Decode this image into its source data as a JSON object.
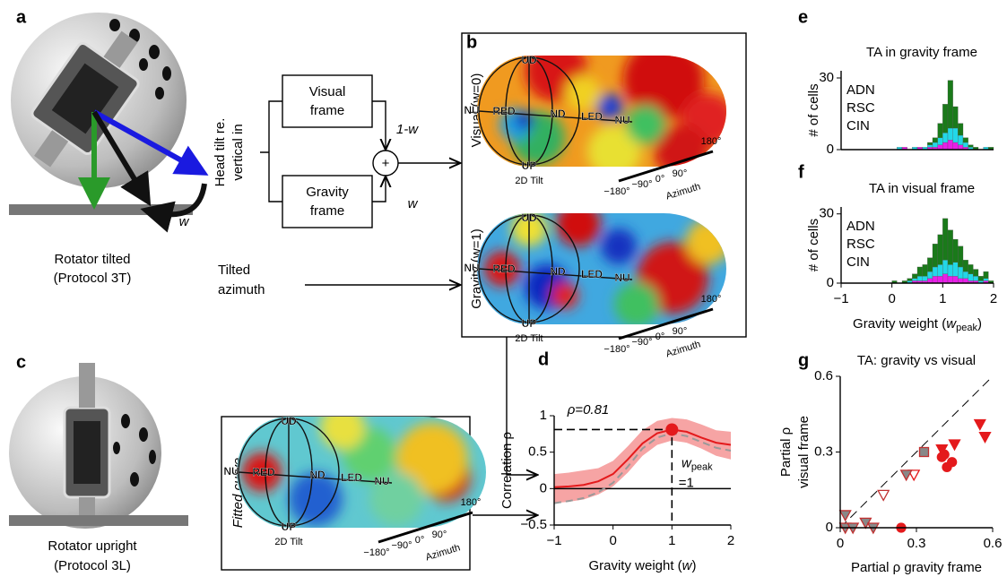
{
  "panel_labels": [
    "a",
    "b",
    "c",
    "d",
    "e",
    "f",
    "g"
  ],
  "diagram": {
    "rotator_tilted": [
      "Rotator tilted",
      "(Protocol 3T)"
    ],
    "rotator_upright": [
      "Rotator upright",
      "(Protocol 3L)"
    ],
    "input_head_tilt": [
      "Head tilt re.",
      "vertical in"
    ],
    "visual_frame": [
      "Visual",
      "frame"
    ],
    "gravity_frame": [
      "Gravity",
      "frame"
    ],
    "visual_weight": "1-w",
    "gravity_weight": "w",
    "sum": "+",
    "rotation_arrow": "w",
    "input_azimuth": [
      "Tilted",
      "azimuth"
    ],
    "map_visual": "Visual (w=0)",
    "map_gravity": "Gravity (w=1)",
    "map_fitted": "Fitted curve",
    "sphere_labels": [
      "UD",
      "NU",
      "RED",
      "ND",
      "LED",
      "NU",
      "UP"
    ],
    "tilt_label": "2D Tilt",
    "azimuth_ticks": [
      "−180°",
      "−90°",
      "0°",
      "90°",
      "180°"
    ],
    "azimuth_label": "Azimuth"
  },
  "chart_data": [
    {
      "type": "histogram",
      "title": "TA in gravity frame",
      "ylabel": "# of cells",
      "bins": [
        -1,
        -0.9,
        -0.8,
        -0.7,
        -0.6,
        -0.5,
        -0.4,
        -0.3,
        -0.2,
        -0.1,
        0,
        0.1,
        0.2,
        0.3,
        0.4,
        0.5,
        0.6,
        0.7,
        0.8,
        0.9,
        1,
        1.1,
        1.2,
        1.3,
        1.4,
        1.5,
        1.6,
        1.7,
        1.8,
        1.9,
        2
      ],
      "series": [
        {
          "name": "ADN",
          "color": "#e81ee8",
          "values": [
            0,
            0,
            0,
            0,
            0,
            0,
            0,
            0,
            0,
            0,
            0,
            0,
            1,
            0,
            0,
            1,
            0,
            1,
            1,
            2,
            3,
            4,
            3,
            2,
            1,
            0,
            0,
            0,
            0,
            0
          ]
        },
        {
          "name": "RSC",
          "color": "#22d8e8",
          "values": [
            0,
            0,
            0,
            0,
            0,
            0,
            0,
            0,
            0,
            0,
            0,
            1,
            0,
            0,
            1,
            0,
            1,
            1,
            2,
            3,
            4,
            5,
            6,
            4,
            2,
            1,
            0,
            0,
            1,
            0
          ]
        },
        {
          "name": "CIN",
          "color": "#1a7a1a",
          "values": [
            0,
            0,
            0,
            0,
            0,
            0,
            0,
            0,
            0,
            0,
            0,
            0,
            0,
            0,
            0,
            0,
            0,
            1,
            2,
            6,
            12,
            20,
            9,
            5,
            2,
            1,
            1,
            0,
            0,
            1
          ]
        }
      ],
      "xlim": [
        -1,
        2
      ],
      "ylim": [
        0,
        33
      ],
      "yticks": [
        0,
        30
      ]
    },
    {
      "type": "histogram",
      "title": "TA in visual frame",
      "ylabel": "# of cells",
      "xlabel": [
        "Gravity weight (",
        "w",
        "peak",
        ")"
      ],
      "bins": [
        -1,
        -0.9,
        -0.8,
        -0.7,
        -0.6,
        -0.5,
        -0.4,
        -0.3,
        -0.2,
        -0.1,
        0,
        0.1,
        0.2,
        0.3,
        0.4,
        0.5,
        0.6,
        0.7,
        0.8,
        0.9,
        1,
        1.1,
        1.2,
        1.3,
        1.4,
        1.5,
        1.6,
        1.7,
        1.8,
        1.9,
        2
      ],
      "series": [
        {
          "name": "ADN",
          "color": "#e81ee8",
          "values": [
            0,
            0,
            0,
            0,
            0,
            0,
            0,
            0,
            0,
            0,
            0,
            0,
            0,
            0,
            1,
            1,
            1,
            2,
            3,
            3,
            4,
            3,
            3,
            2,
            2,
            1,
            1,
            0,
            1,
            0
          ]
        },
        {
          "name": "RSC",
          "color": "#22d8e8",
          "values": [
            0,
            0,
            0,
            0,
            0,
            0,
            0,
            0,
            0,
            0,
            0,
            0,
            0,
            1,
            1,
            2,
            2,
            3,
            4,
            5,
            6,
            5,
            6,
            5,
            3,
            3,
            2,
            1,
            1,
            0
          ]
        },
        {
          "name": "CIN",
          "color": "#1a7a1a",
          "values": [
            0,
            0,
            0,
            0,
            0,
            0,
            0,
            0,
            0,
            0,
            1,
            0,
            1,
            1,
            2,
            4,
            5,
            6,
            10,
            13,
            18,
            15,
            10,
            9,
            5,
            4,
            3,
            2,
            3,
            1
          ]
        }
      ],
      "xlim": [
        -1,
        2
      ],
      "ylim": [
        0,
        33
      ],
      "yticks": [
        0,
        30
      ],
      "xticks": [
        {
          "value": -1,
          "label": "−1"
        },
        0,
        1,
        2
      ]
    },
    {
      "type": "line",
      "ylabel": "Correlation ρ",
      "xlabel": [
        "Gravity weight (",
        "w",
        ")"
      ],
      "x": [
        -1,
        -0.75,
        -0.5,
        -0.25,
        0,
        0.25,
        0.5,
        0.75,
        1,
        1.25,
        1.5,
        1.75,
        2
      ],
      "series": [
        {
          "color": "#e41a1c",
          "style": "solid",
          "values": [
            0.02,
            0.03,
            0.05,
            0.1,
            0.2,
            0.4,
            0.62,
            0.76,
            0.81,
            0.78,
            0.7,
            0.63,
            0.6
          ]
        },
        {
          "color": "#999999",
          "style": "dashed",
          "values": [
            -0.2,
            -0.17,
            -0.13,
            -0.05,
            0.08,
            0.3,
            0.55,
            0.7,
            0.76,
            0.72,
            0.64,
            0.56,
            0.52
          ]
        }
      ],
      "band": {
        "color": "#f6a4a4",
        "lower": [
          -0.2,
          -0.18,
          -0.15,
          -0.08,
          0.03,
          0.22,
          0.45,
          0.6,
          0.66,
          0.63,
          0.55,
          0.45,
          0.4
        ],
        "upper": [
          0.2,
          0.22,
          0.25,
          0.28,
          0.38,
          0.58,
          0.8,
          0.93,
          0.97,
          0.95,
          0.88,
          0.8,
          0.78
        ]
      },
      "peak": {
        "x": 1,
        "y": 0.81
      },
      "rho_label": "ρ=0.81",
      "peak_label": [
        "w",
        "peak"
      ],
      "peak_value": "=1",
      "xlim": [
        -1,
        2
      ],
      "ylim": [
        -0.5,
        1
      ],
      "xticks": [
        {
          "value": -1,
          "label": "−1"
        },
        0,
        1,
        2
      ],
      "yticks": [
        {
          "value": -0.5,
          "label": "−0.5"
        },
        0,
        0.5,
        1
      ]
    },
    {
      "type": "scatter",
      "title": "TA: gravity vs visual",
      "xlabel": "Partial ρ gravity frame",
      "ylabel": [
        "Partial ρ",
        "visual frame"
      ],
      "xlim": [
        0,
        0.6
      ],
      "ylim": [
        0,
        0.6
      ],
      "xticks": [
        0,
        0.3,
        0.6
      ],
      "yticks": [
        0,
        0.3,
        0.6
      ],
      "diagonal": true,
      "series": [
        {
          "marker": "circle",
          "color": "#e41a1c",
          "filled": true,
          "x": [
            0.24,
            0.4,
            0.41,
            0.42,
            0.44
          ],
          "y": [
            0,
            0.28,
            0.29,
            0.24,
            0.26
          ]
        },
        {
          "marker": "triangle",
          "color": "#e41a1c",
          "filled": true,
          "x": [
            0.4,
            0.45,
            0.55,
            0.57
          ],
          "y": [
            0.31,
            0.33,
            0.41,
            0.36
          ]
        },
        {
          "marker": "triangle",
          "color": "#e41a1c",
          "filled": false,
          "x": [
            0.29
          ],
          "y": [
            0.21
          ]
        },
        {
          "marker": "triangle",
          "color": "#888888",
          "filled": true,
          "x": [
            0.02,
            0.02,
            0.05,
            0.1,
            0.13,
            0.26
          ],
          "y": [
            0.05,
            0,
            0,
            0.02,
            0,
            0.21
          ]
        },
        {
          "marker": "triangle",
          "color": "#888888",
          "filled": false,
          "x": [
            0.17
          ],
          "y": [
            0.13
          ]
        },
        {
          "marker": "square",
          "color": "#888888",
          "filled": true,
          "x": [
            0.33
          ],
          "y": [
            0.3
          ]
        }
      ]
    }
  ]
}
